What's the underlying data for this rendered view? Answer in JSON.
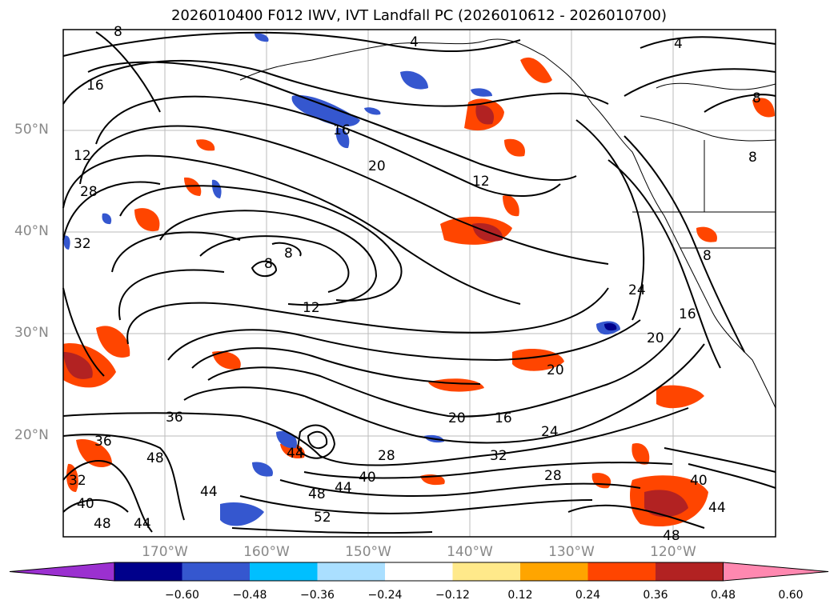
{
  "title": "2026010400 F012 IWV, IVT Landfall PC (2026010612 - 2026010700)",
  "lat_labels": [
    "50°N",
    "40°N",
    "30°N",
    "20°N"
  ],
  "lon_labels": [
    "170°W",
    "160°W",
    "150°W",
    "140°W",
    "130°W",
    "120°W"
  ],
  "colorbar": {
    "colors": [
      "#9b30d0",
      "#00008b",
      "#3557cf",
      "#00bfff",
      "#aadfff",
      "#ffffff",
      "#ffe98a",
      "#ffa500",
      "#ff4500",
      "#b22222",
      "#ff88b0"
    ],
    "ticks": [
      "−0.60",
      "−0.48",
      "−0.36",
      "−0.24",
      "−0.12",
      "0.12",
      "0.24",
      "0.36",
      "0.48",
      "0.60"
    ]
  },
  "contour_labels": [
    "8",
    "4",
    "4",
    "16",
    "16",
    "12",
    "20",
    "12",
    "28",
    "32",
    "8",
    "8",
    "12",
    "24",
    "20",
    "16",
    "8",
    "8",
    "8",
    "20",
    "20",
    "16",
    "36",
    "24",
    "36",
    "48",
    "44",
    "28",
    "32",
    "28",
    "40",
    "40",
    "32",
    "40",
    "44",
    "48",
    "52",
    "48",
    "44",
    "44",
    "48",
    "44"
  ]
}
